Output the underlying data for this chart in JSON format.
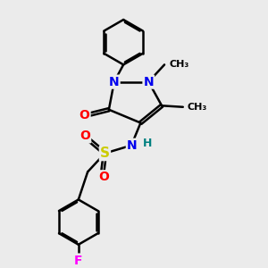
{
  "bg_color": "#ebebeb",
  "bond_color": "#000000",
  "bond_width": 1.8,
  "dbo": 0.055,
  "atom_colors": {
    "N": "#0000ee",
    "O": "#ff0000",
    "S": "#cccc00",
    "F": "#ff00ff",
    "H": "#008080",
    "C": "#000000"
  },
  "font_size": 9
}
